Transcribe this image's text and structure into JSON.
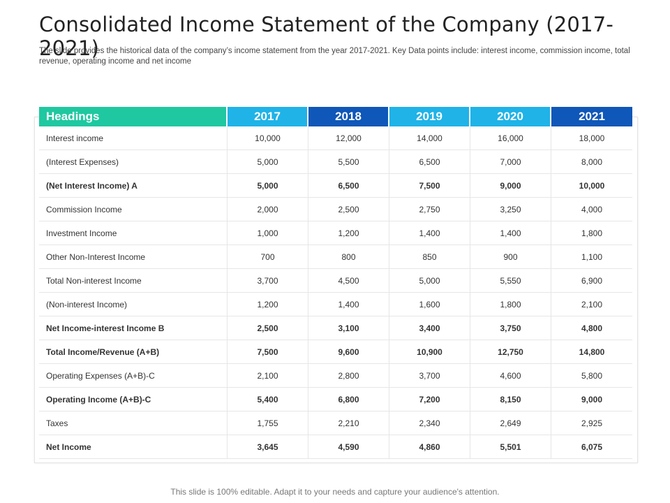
{
  "title": "Consolidated Income Statement of the Company (2017-2021)",
  "subtitle": "The slide provides  the historical data of the company’s income statement from the year 2017-2021.  Key Data points include:  interest income, commission income, total revenue,  operating income and net income",
  "table": {
    "header_label": "Headings",
    "years": [
      "2017",
      "2018",
      "2019",
      "2020",
      "2021"
    ],
    "year_colors": [
      "#1fb3e8",
      "#0f57b8",
      "#1fb3e8",
      "#1fb3e8",
      "#0f57b8"
    ],
    "rows": [
      {
        "label": "Interest income",
        "bold": false,
        "values": [
          "10,000",
          "12,000",
          "14,000",
          "16,000",
          "18,000"
        ]
      },
      {
        "label": "(Interest Expenses)",
        "bold": false,
        "values": [
          "5,000",
          "5,500",
          "6,500",
          "7,000",
          "8,000"
        ]
      },
      {
        "label": "(Net Interest Income) A",
        "bold": true,
        "values": [
          "5,000",
          "6,500",
          "7,500",
          "9,000",
          "10,000"
        ]
      },
      {
        "label": "Commission Income",
        "bold": false,
        "values": [
          "2,000",
          "2,500",
          "2,750",
          "3,250",
          "4,000"
        ]
      },
      {
        "label": "Investment Income",
        "bold": false,
        "values": [
          "1,000",
          "1,200",
          "1,400",
          "1,400",
          "1,800"
        ]
      },
      {
        "label": "Other Non-Interest Income",
        "bold": false,
        "values": [
          "700",
          "800",
          "850",
          "900",
          "1,100"
        ]
      },
      {
        "label": "Total Non-interest Income",
        "bold": false,
        "values": [
          "3,700",
          "4,500",
          "5,000",
          "5,550",
          "6,900"
        ]
      },
      {
        "label": "(Non-interest Income)",
        "bold": false,
        "values": [
          "1,200",
          "1,400",
          "1,600",
          "1,800",
          "2,100"
        ]
      },
      {
        "label": "Net Income-interest Income B",
        "bold": true,
        "values": [
          "2,500",
          "3,100",
          "3,400",
          "3,750",
          "4,800"
        ]
      },
      {
        "label": "Total Income/Revenue (A+B)",
        "bold": true,
        "values": [
          "7,500",
          "9,600",
          "10,900",
          "12,750",
          "14,800"
        ]
      },
      {
        "label": "Operating Expenses (A+B)-C",
        "bold": false,
        "values": [
          "2,100",
          "2,800",
          "3,700",
          "4,600",
          "5,800"
        ]
      },
      {
        "label": "Operating Income (A+B)-C",
        "bold": true,
        "values": [
          "5,400",
          "6,800",
          "7,200",
          "8,150",
          "9,000"
        ]
      },
      {
        "label": "Taxes",
        "bold": false,
        "values": [
          "1,755",
          "2,210",
          "2,340",
          "2,649",
          "2,925"
        ]
      },
      {
        "label": "Net Income",
        "bold": true,
        "values": [
          "3,645",
          "4,590",
          "4,860",
          "5,501",
          "6,075"
        ]
      }
    ]
  },
  "footer": "This slide is 100% editable. Adapt it to your needs and capture your audience's attention."
}
